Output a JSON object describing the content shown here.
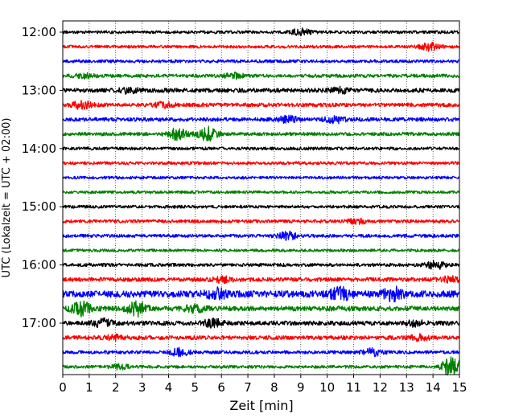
{
  "chart_data": {
    "type": "line",
    "title": "",
    "xlabel": "Zeit  [min]",
    "ylabel": "UTC (Lokalzeit = UTC + 02:00)",
    "xlim": [
      0,
      15
    ],
    "x_ticks": [
      0,
      1,
      2,
      3,
      4,
      5,
      6,
      7,
      8,
      9,
      10,
      11,
      12,
      13,
      14,
      15
    ],
    "y_tick_labels": [
      "12:00",
      "13:00",
      "14:00",
      "15:00",
      "16:00",
      "17:00"
    ],
    "grid": {
      "vertical": true,
      "style": "dotted"
    },
    "trace_colors": [
      "#000000",
      "#ff0000",
      "#0000ff",
      "#008000"
    ],
    "traces": [
      {
        "start": "12:00",
        "activity": 0.25,
        "events": [
          {
            "t": 9.0,
            "amp": 1.4
          }
        ]
      },
      {
        "start": "12:15",
        "activity": 0.25,
        "events": [
          {
            "t": 13.9,
            "amp": 1.6
          }
        ]
      },
      {
        "start": "12:30",
        "activity": 0.25,
        "events": []
      },
      {
        "start": "12:45",
        "activity": 0.35,
        "events": [
          {
            "t": 0.8,
            "amp": 1.0
          },
          {
            "t": 6.5,
            "amp": 1.2
          }
        ]
      },
      {
        "start": "13:00",
        "activity": 0.55,
        "events": [
          {
            "t": 2.5,
            "amp": 1.0
          },
          {
            "t": 10.5,
            "amp": 1.0
          }
        ]
      },
      {
        "start": "13:15",
        "activity": 0.45,
        "events": [
          {
            "t": 0.7,
            "amp": 1.5
          },
          {
            "t": 3.8,
            "amp": 1.0
          }
        ]
      },
      {
        "start": "13:30",
        "activity": 0.45,
        "events": [
          {
            "t": 8.5,
            "amp": 1.4
          },
          {
            "t": 10.3,
            "amp": 1.4
          }
        ]
      },
      {
        "start": "13:45",
        "activity": 0.35,
        "events": [
          {
            "t": 4.3,
            "amp": 2.5
          },
          {
            "t": 5.5,
            "amp": 3.0
          }
        ]
      },
      {
        "start": "14:00",
        "activity": 0.25,
        "events": []
      },
      {
        "start": "14:15",
        "activity": 0.25,
        "events": []
      },
      {
        "start": "14:30",
        "activity": 0.2,
        "events": []
      },
      {
        "start": "14:45",
        "activity": 0.2,
        "events": []
      },
      {
        "start": "15:00",
        "activity": 0.25,
        "events": []
      },
      {
        "start": "15:15",
        "activity": 0.3,
        "events": [
          {
            "t": 11.1,
            "amp": 1.2
          }
        ]
      },
      {
        "start": "15:30",
        "activity": 0.3,
        "events": [
          {
            "t": 8.5,
            "amp": 1.6
          }
        ]
      },
      {
        "start": "15:45",
        "activity": 0.2,
        "events": []
      },
      {
        "start": "16:00",
        "activity": 0.3,
        "events": [
          {
            "t": 14.1,
            "amp": 1.8
          }
        ]
      },
      {
        "start": "16:15",
        "activity": 0.5,
        "events": [
          {
            "t": 6.0,
            "amp": 1.2
          },
          {
            "t": 14.7,
            "amp": 1.2
          }
        ]
      },
      {
        "start": "16:30",
        "activity": 1.1,
        "events": [
          {
            "t": 5.8,
            "amp": 2.2
          },
          {
            "t": 10.5,
            "amp": 2.5
          },
          {
            "t": 12.5,
            "amp": 2.5
          }
        ]
      },
      {
        "start": "16:45",
        "activity": 0.7,
        "events": [
          {
            "t": 0.7,
            "amp": 3.2
          },
          {
            "t": 2.8,
            "amp": 3.0
          },
          {
            "t": 5.0,
            "amp": 1.4
          }
        ]
      },
      {
        "start": "17:00",
        "activity": 0.55,
        "events": [
          {
            "t": 1.5,
            "amp": 1.6
          },
          {
            "t": 5.7,
            "amp": 1.8
          },
          {
            "t": 13.3,
            "amp": 1.2
          }
        ]
      },
      {
        "start": "17:15",
        "activity": 0.5,
        "events": [
          {
            "t": 2.0,
            "amp": 1.0
          },
          {
            "t": 13.5,
            "amp": 1.0
          }
        ]
      },
      {
        "start": "17:30",
        "activity": 0.3,
        "events": [
          {
            "t": 4.4,
            "amp": 1.6
          },
          {
            "t": 11.7,
            "amp": 1.5
          }
        ]
      },
      {
        "start": "17:45",
        "activity": 0.25,
        "events": [
          {
            "t": 2.2,
            "amp": 1.0
          },
          {
            "t": 14.7,
            "amp": 4.5
          }
        ]
      }
    ]
  }
}
